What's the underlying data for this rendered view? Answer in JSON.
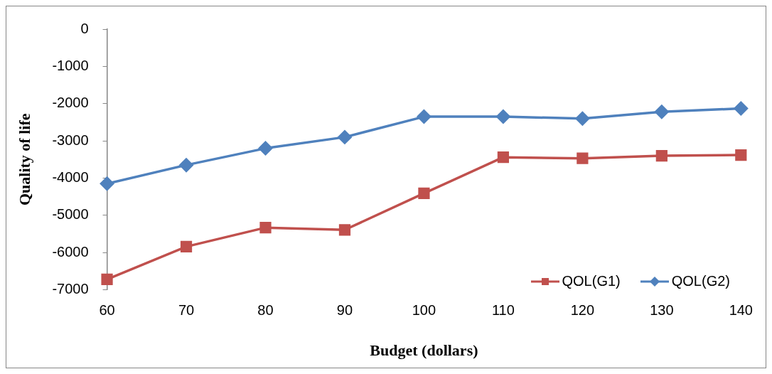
{
  "chart_data": {
    "type": "line",
    "xlabel": "Budget (dollars)",
    "ylabel": "Quality of life",
    "categories": [
      "60",
      "70",
      "80",
      "90",
      "100",
      "110",
      "120",
      "130",
      "140"
    ],
    "series": [
      {
        "name": "QOL(G1)",
        "color": "#c0504d",
        "marker": "square",
        "values": [
          -6720,
          -5840,
          -5330,
          -5390,
          -4410,
          -3440,
          -3470,
          -3400,
          -3380
        ]
      },
      {
        "name": "QOL(G2)",
        "color": "#4f81bd",
        "marker": "diamond",
        "values": [
          -4150,
          -3650,
          -3200,
          -2900,
          -2350,
          -2350,
          -2400,
          -2220,
          -2130
        ]
      }
    ],
    "ylim": [
      -7000,
      0
    ],
    "yticks": [
      -7000,
      -6000,
      -5000,
      -4000,
      -3000,
      -2000,
      -1000,
      0
    ],
    "grid": false,
    "legend": "bottom right",
    "line_style": "solid"
  }
}
